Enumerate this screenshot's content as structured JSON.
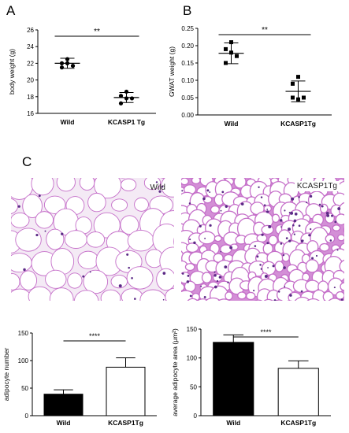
{
  "panels": {
    "a": "A",
    "b": "B",
    "c": "C"
  },
  "histology": {
    "left_label": "Wild",
    "right_label": "KCASP1Tg",
    "stain_color": "#c56fc9",
    "background_color": "#f4eaf5"
  },
  "chart_data": [
    {
      "type": "scatter",
      "ylabel": "body weight (g)",
      "xlabel": "",
      "categories": [
        "Wild",
        "KCASP1 Tg"
      ],
      "ylim": [
        16,
        26
      ],
      "yticks": [
        16,
        18,
        20,
        22,
        24,
        26
      ],
      "series": [
        {
          "points": [
            22.5,
            22.0,
            21.7,
            22.0,
            21.5
          ],
          "mean": 22.0,
          "sd": 0.6
        },
        {
          "points": [
            18.6,
            18.1,
            17.8,
            17.8,
            17.2
          ],
          "mean": 17.9,
          "sd": 0.6
        }
      ],
      "significance": "**",
      "marker": "circle"
    },
    {
      "type": "scatter",
      "ylabel": "GWAT weight (g)",
      "xlabel": "",
      "categories": [
        "Wild",
        "KCASP1Tg"
      ],
      "ylim": [
        0.0,
        0.25
      ],
      "yticks": [
        "0.00",
        "0.05",
        "0.10",
        "0.15",
        "0.20",
        "0.25"
      ],
      "series": [
        {
          "points": [
            0.21,
            0.19,
            0.17,
            0.18,
            0.15
          ],
          "mean": 0.178,
          "sd": 0.03
        },
        {
          "points": [
            0.11,
            0.09,
            0.05,
            0.045,
            0.05
          ],
          "mean": 0.068,
          "sd": 0.03
        }
      ],
      "significance": "**",
      "marker": "square"
    },
    {
      "type": "bar",
      "ylabel": "adipocyte number",
      "xlabel": "",
      "categories": [
        "Wild",
        "KCASP1Tg"
      ],
      "values": [
        39,
        88
      ],
      "errors": [
        8,
        17
      ],
      "ylim": [
        0,
        150
      ],
      "yticks": [
        0,
        50,
        100,
        150
      ],
      "fills": [
        "#000000",
        "#ffffff"
      ],
      "significance": "****"
    },
    {
      "type": "bar",
      "ylabel": "average adipocyte area (μm²)",
      "xlabel": "",
      "categories": [
        "Wild",
        "KCASP1Tg"
      ],
      "values": [
        127,
        82
      ],
      "errors": [
        13,
        13
      ],
      "ylim": [
        0,
        150
      ],
      "yticks": [
        0,
        50,
        100,
        150
      ],
      "fills": [
        "#000000",
        "#ffffff"
      ],
      "significance": "****"
    }
  ]
}
